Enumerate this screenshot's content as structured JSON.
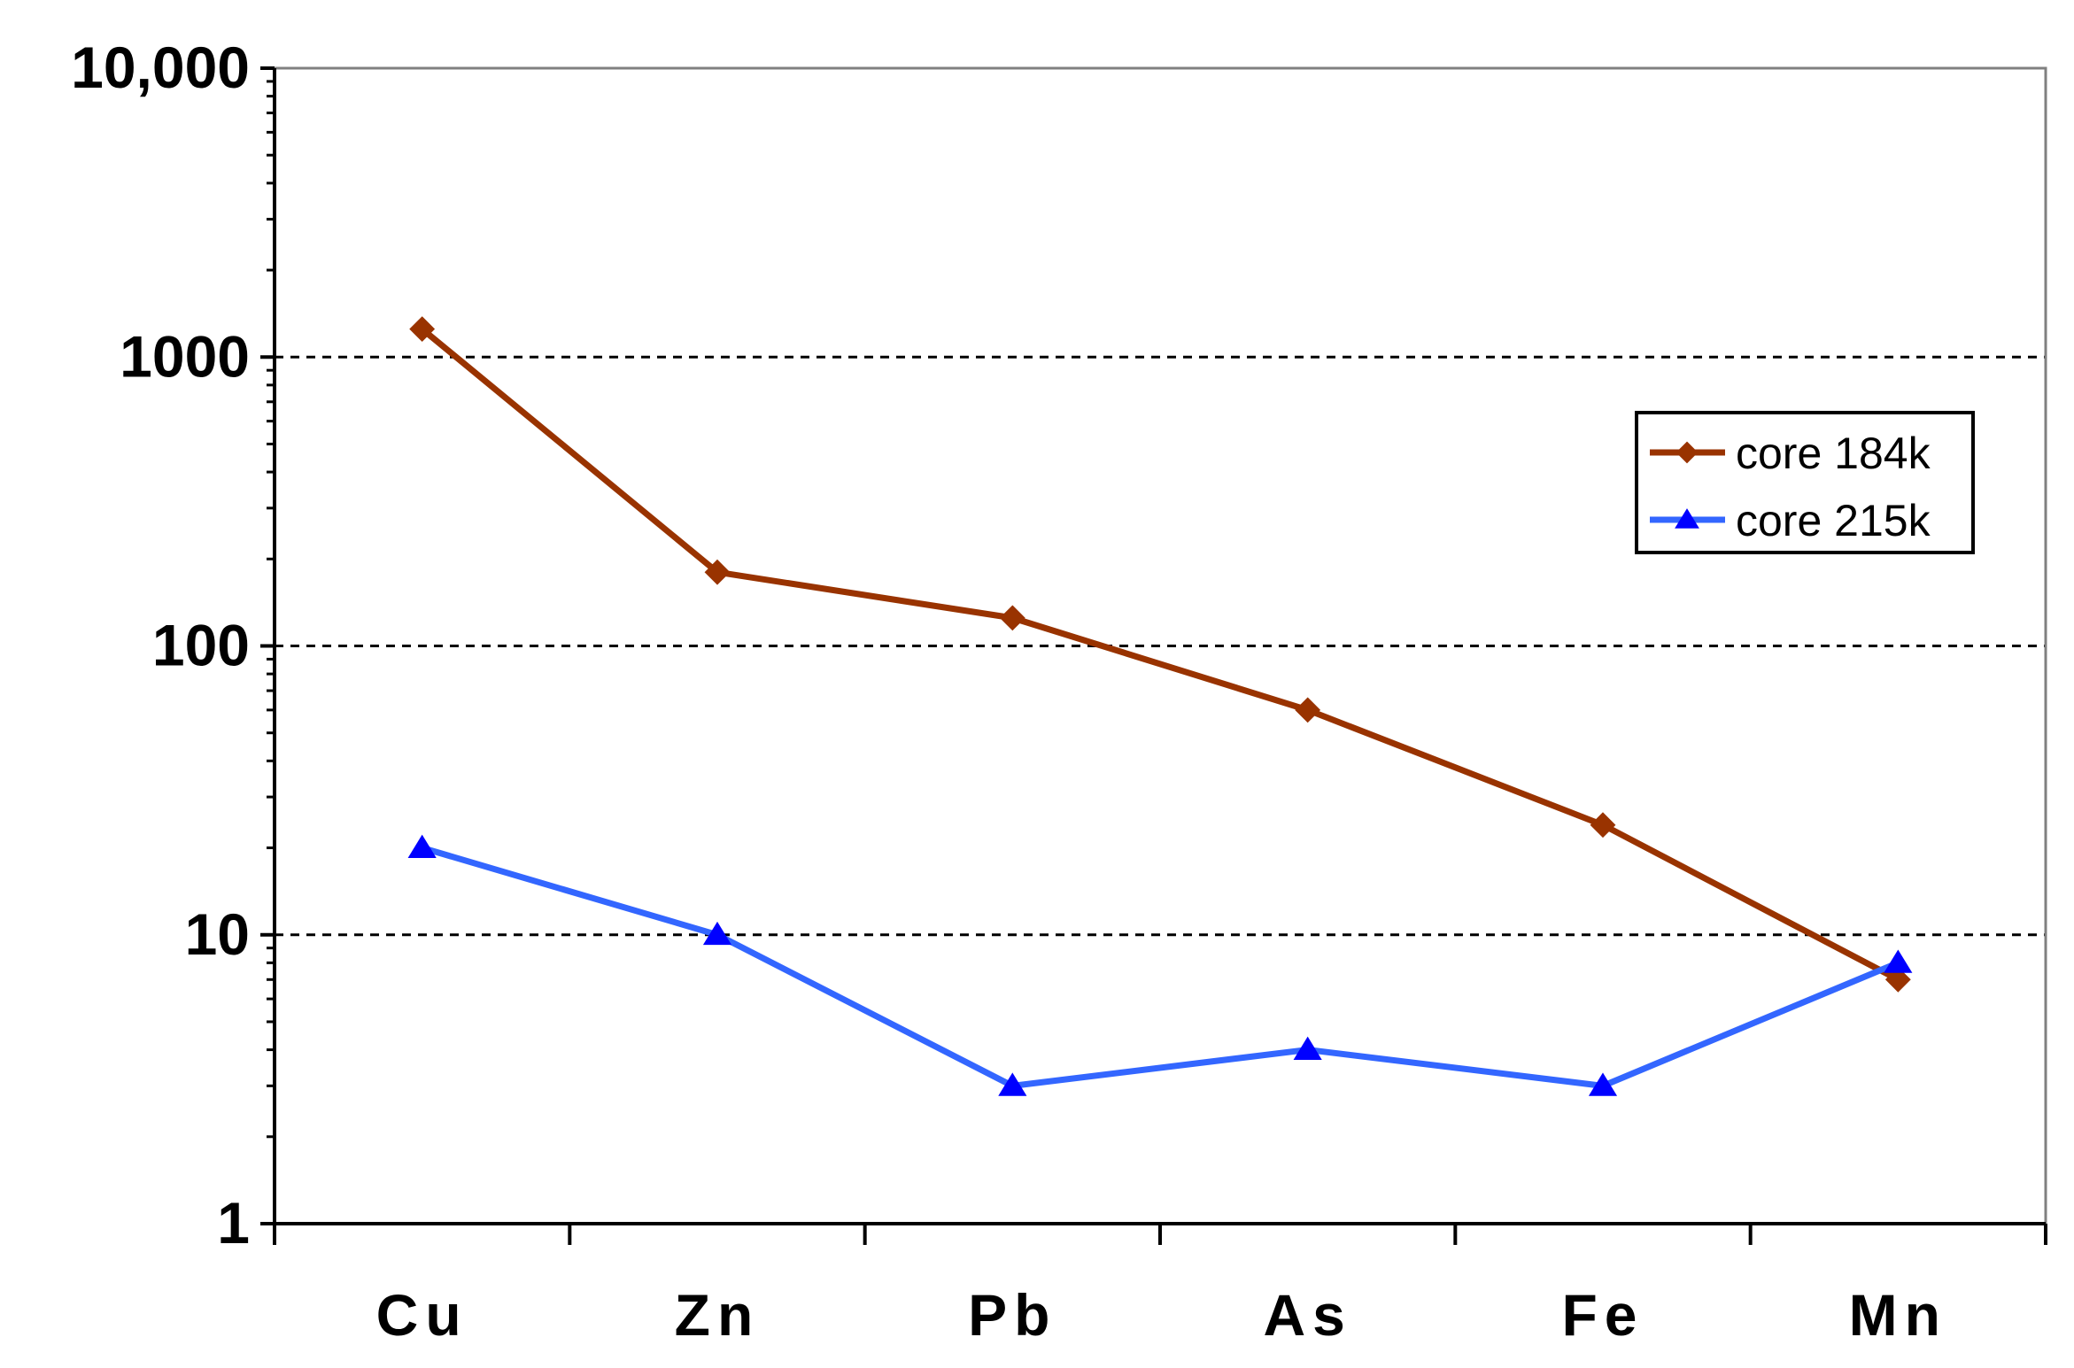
{
  "chart_data": {
    "type": "line",
    "title": "",
    "xlabel": "",
    "ylabel": "",
    "categories": [
      "Cu",
      "Zn",
      "Pb",
      "As",
      "Fe",
      "Mn"
    ],
    "y_scale": "log",
    "ylim": [
      1,
      10000
    ],
    "yticks": [
      {
        "value": 1,
        "label": "1"
      },
      {
        "value": 10,
        "label": "10"
      },
      {
        "value": 100,
        "label": "100"
      },
      {
        "value": 1000,
        "label": "1000"
      },
      {
        "value": 10000,
        "label": "10,000"
      }
    ],
    "grid": "dashed horizontal lines at 10, 100, 1000",
    "legend_position": "top-right",
    "series": [
      {
        "name": "core 184k",
        "color": "#993300",
        "marker": "diamond",
        "values": [
          1250,
          180,
          125,
          60,
          24,
          7
        ]
      },
      {
        "name": "core 215k",
        "color": "#3366ff",
        "marker_color": "#0000ff",
        "marker": "triangle",
        "values": [
          20,
          10,
          3,
          4,
          3,
          8
        ]
      }
    ]
  }
}
